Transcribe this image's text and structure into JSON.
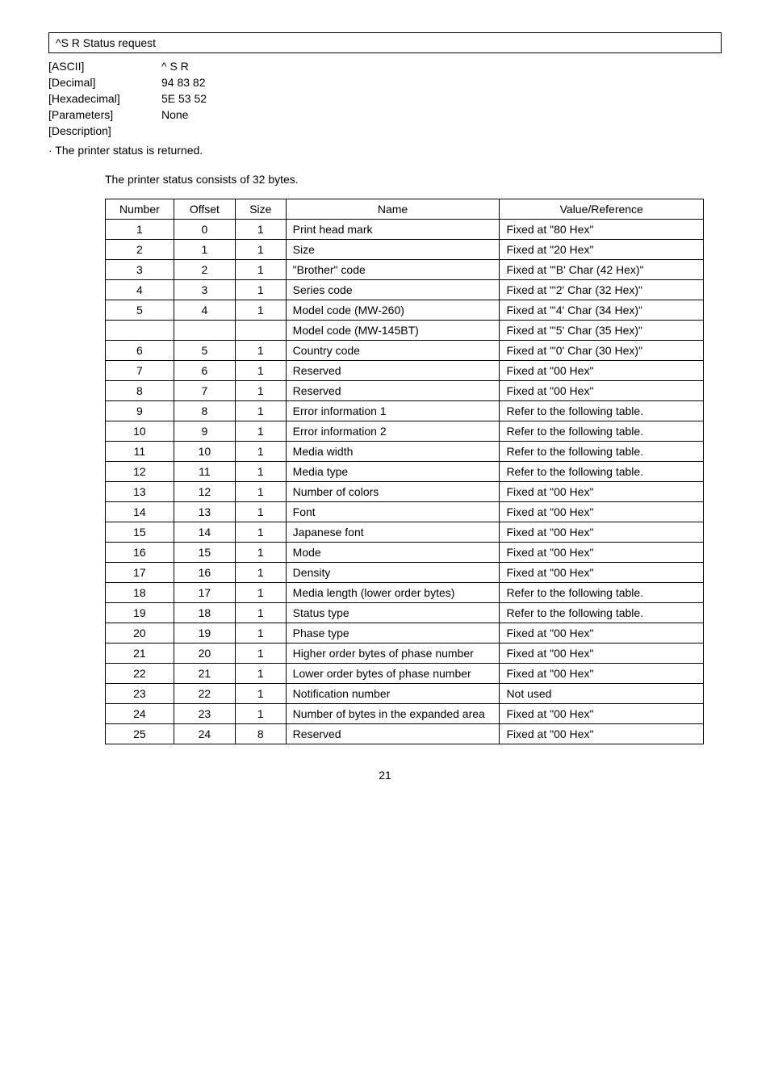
{
  "command": {
    "box_label": "^S R       Status request",
    "params": [
      {
        "label": "[ASCII]",
        "value": "^ S R"
      },
      {
        "label": "[Decimal]",
        "value": "94 83 82"
      },
      {
        "label": "[Hexadecimal]",
        "value": "5E 53 52"
      },
      {
        "label": "[Parameters]",
        "value": "None"
      },
      {
        "label": "[Description]",
        "value": ""
      }
    ],
    "note": "· The printer status is returned.",
    "intro": "The printer status consists of 32 bytes."
  },
  "table": {
    "headers": [
      "Number",
      "Offset",
      "Size",
      "Name",
      "Value/Reference"
    ],
    "rows": [
      {
        "num": "1",
        "off": "0",
        "size": "1",
        "name": "Print head mark",
        "val": "Fixed at \"80 Hex\""
      },
      {
        "num": "2",
        "off": "1",
        "size": "1",
        "name": "Size",
        "val": "Fixed at \"20 Hex\""
      },
      {
        "num": "3",
        "off": "2",
        "size": "1",
        "name": "\"Brother\" code",
        "val": "Fixed at \"'B' Char (42 Hex)\""
      },
      {
        "num": "4",
        "off": "3",
        "size": "1",
        "name": "Series code",
        "val": "Fixed at \"'2'  Char (32 Hex)\""
      },
      {
        "num": "5",
        "off": "4",
        "size": "1",
        "name": "Model code (MW-260)",
        "val": "Fixed at \"'4' Char (34 Hex)\""
      },
      {
        "num": "",
        "off": "",
        "size": "",
        "name": "Model code (MW-145BT)",
        "val": "Fixed at \"'5' Char (35 Hex)\""
      },
      {
        "num": "6",
        "off": "5",
        "size": "1",
        "name": "Country code",
        "val": "Fixed at \"'0' Char (30 Hex)\""
      },
      {
        "num": "7",
        "off": "6",
        "size": "1",
        "name": "Reserved",
        "val": "Fixed at \"00 Hex\""
      },
      {
        "num": "8",
        "off": "7",
        "size": "1",
        "name": "Reserved",
        "val": "Fixed at \"00 Hex\""
      },
      {
        "num": "9",
        "off": "8",
        "size": "1",
        "name": "Error information 1",
        "val": "Refer to the following table."
      },
      {
        "num": "10",
        "off": "9",
        "size": "1",
        "name": "Error information 2",
        "val": "Refer to the following table."
      },
      {
        "num": "11",
        "off": "10",
        "size": "1",
        "name": "Media width",
        "val": "Refer to the following table."
      },
      {
        "num": "12",
        "off": "11",
        "size": "1",
        "name": "Media type",
        "val": "Refer to the following table."
      },
      {
        "num": "13",
        "off": "12",
        "size": "1",
        "name": "Number of colors",
        "val": "Fixed at \"00 Hex\""
      },
      {
        "num": "14",
        "off": "13",
        "size": "1",
        "name": "Font",
        "val": "Fixed at \"00 Hex\""
      },
      {
        "num": "15",
        "off": "14",
        "size": "1",
        "name": "Japanese font",
        "val": "Fixed at \"00 Hex\""
      },
      {
        "num": "16",
        "off": "15",
        "size": "1",
        "name": "Mode",
        "val": "Fixed at \"00 Hex\""
      },
      {
        "num": "17",
        "off": "16",
        "size": "1",
        "name": "Density",
        "val": "Fixed at \"00 Hex\""
      },
      {
        "num": "18",
        "off": "17",
        "size": "1",
        "name": "Media length (lower order bytes)",
        "val": "Refer to the following table."
      },
      {
        "num": "19",
        "off": "18",
        "size": "1",
        "name": "Status type",
        "val": "Refer to the following table."
      },
      {
        "num": "20",
        "off": "19",
        "size": "1",
        "name": "Phase type",
        "val": "Fixed at \"00 Hex\""
      },
      {
        "num": "21",
        "off": "20",
        "size": "1",
        "name": "Higher order bytes of phase number",
        "val": "Fixed at \"00 Hex\""
      },
      {
        "num": "22",
        "off": "21",
        "size": "1",
        "name": "Lower order bytes of phase number",
        "val": "Fixed at \"00 Hex\""
      },
      {
        "num": "23",
        "off": "22",
        "size": "1",
        "name": "Notification number",
        "val": "Not used"
      },
      {
        "num": "24",
        "off": "23",
        "size": "1",
        "name": "Number of bytes in the expanded area",
        "val": "Fixed at \"00 Hex\""
      },
      {
        "num": "25",
        "off": "24",
        "size": "8",
        "name": "Reserved",
        "val": "Fixed at \"00 Hex\""
      }
    ]
  },
  "page_number": "21"
}
